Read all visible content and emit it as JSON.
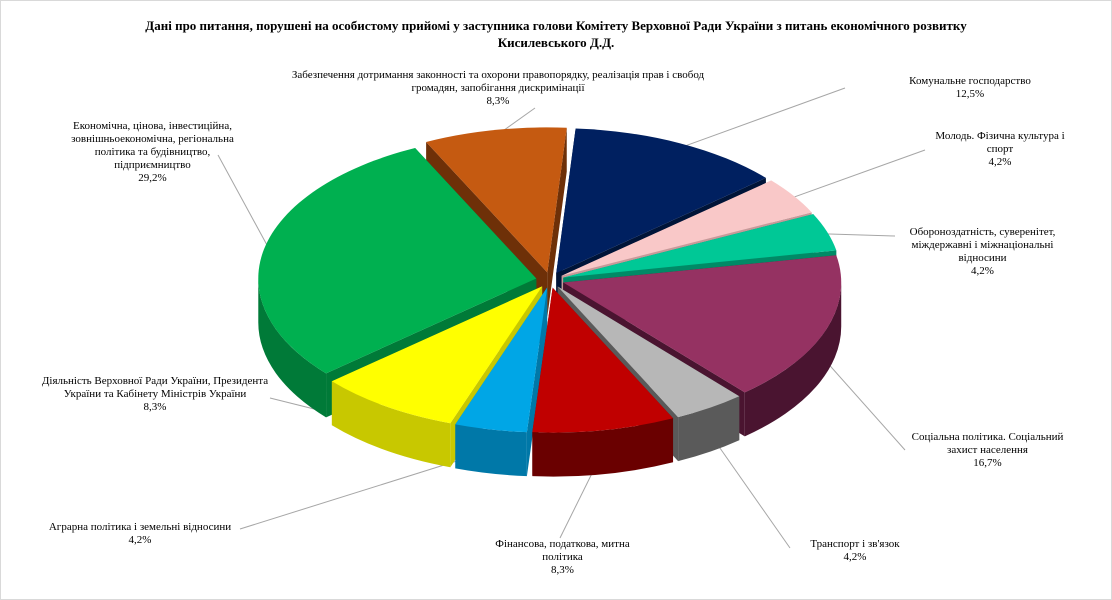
{
  "chart_data": {
    "type": "pie",
    "title": "Дані про питання, порушені на особистому прийомі у заступника голови Комітету Верховної Ради України з питань економічного розвитку Кисилевського Д.Д.",
    "slices": [
      {
        "name": "Комунальне господарство",
        "value": 12.5,
        "label_value": "12,5%",
        "color": "#002060",
        "side": "#001438"
      },
      {
        "name": "Молодь. Фізична культура і спорт",
        "value": 4.2,
        "label_value": "4,2%",
        "color": "#F9C8C8",
        "side": "#C79A9A"
      },
      {
        "name": "Обороноздатність, суверенітет, міждержавні і міжнаціональні відносини",
        "value": 4.2,
        "label_value": "4,2%",
        "color": "#00C896",
        "side": "#008A66"
      },
      {
        "name": "Соціальна політика. Соціальний захист населення",
        "value": 16.7,
        "label_value": "16,7%",
        "color": "#953262",
        "side": "#4A1430"
      },
      {
        "name": "Транспорт  і зв'язок",
        "value": 4.2,
        "label_value": "4,2%",
        "color": "#B7B7B7",
        "side": "#5A5A5A"
      },
      {
        "name": "Фінансова, податкова, митна політика",
        "value": 8.3,
        "label_value": "8,3%",
        "color": "#C00000",
        "side": "#6A0000"
      },
      {
        "name": "Аграрна  політика  і земельні відносини",
        "value": 4.2,
        "label_value": "4,2%",
        "color": "#00A6E6",
        "side": "#0078A8"
      },
      {
        "name": "Діяльність Верховної Ради України, Президента України та Кабінету Міністрів України",
        "value": 8.3,
        "label_value": "8,3%",
        "color": "#FFFF00",
        "side": "#C8C800"
      },
      {
        "name": "Економічна, цінова, інвестиційна, зовнішньоекономічна, регіональна політика та будівництво, підприємництво",
        "value": 29.2,
        "label_value": "29,2%",
        "color": "#00B050",
        "side": "#007A38"
      },
      {
        "name": "Забезпечення дотримання законності та охорони правопорядку, реалізація прав  і свобод громадян, запобігання дискримінації",
        "value": 8.3,
        "label_value": "8,3%",
        "color": "#C55A11",
        "side": "#6E3008"
      }
    ]
  }
}
